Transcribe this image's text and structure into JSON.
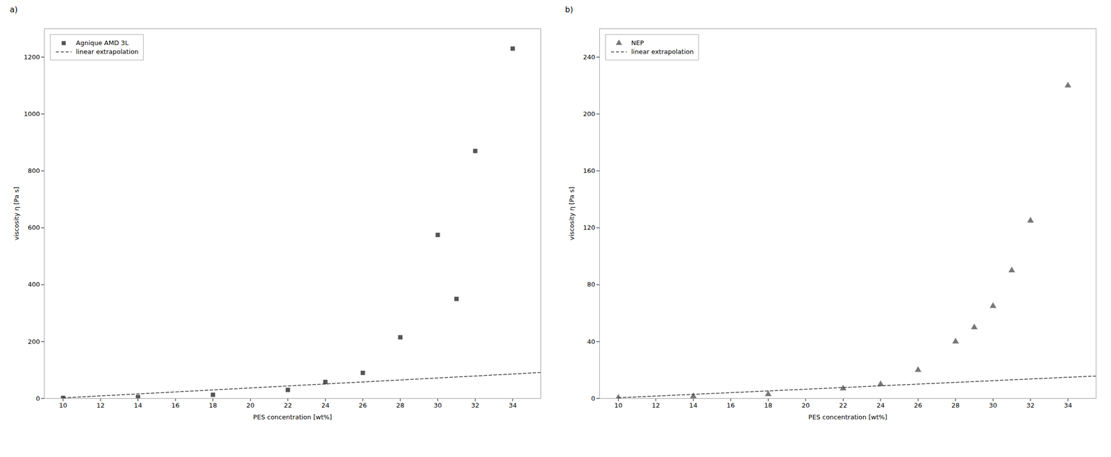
{
  "chart_data": [
    {
      "type": "scatter",
      "title": "a)",
      "x_label": "PES concentration [wt%]",
      "y_label": "viscosity η [Pa s]",
      "series": [
        {
          "name": "Agnique AMD 3L",
          "type": "scatter",
          "marker": "square",
          "color": "#555555",
          "x": [
            10,
            14,
            18,
            22,
            24,
            26,
            28,
            30,
            31,
            32,
            34
          ],
          "values": [
            2,
            5,
            13,
            30,
            58,
            90,
            215,
            575,
            350,
            870,
            1230
          ]
        },
        {
          "name": "linear extrapolation",
          "type": "line",
          "line_style": "dashed",
          "color": "#333333",
          "x": [
            10,
            35.5
          ],
          "values": [
            2,
            91.25
          ]
        }
      ],
      "xlim": [
        9.0,
        35.5
      ],
      "ylim": [
        0,
        1300
      ],
      "xticks": [
        10,
        12,
        14,
        16,
        18,
        20,
        22,
        24,
        26,
        28,
        30,
        32,
        34
      ],
      "yticks": [
        0,
        200,
        400,
        600,
        800,
        1000,
        1200
      ],
      "grid": false,
      "legend": "upper left"
    },
    {
      "type": "scatter",
      "title": "b)",
      "x_label": "PES concentration [wt%]",
      "y_label": "viscosity η [Pa s]",
      "series": [
        {
          "name": "NEP",
          "type": "scatter",
          "marker": "triangle",
          "color": "#777777",
          "x": [
            10,
            14,
            18,
            22,
            24,
            26,
            28,
            29,
            30,
            31,
            32,
            34
          ],
          "values": [
            0.5,
            1.5,
            3,
            7,
            10,
            20,
            40,
            50,
            65,
            90,
            125,
            220
          ]
        },
        {
          "name": "linear extrapolation",
          "type": "line",
          "line_style": "dashed",
          "color": "#333333",
          "x": [
            10,
            35.5
          ],
          "values": [
            0.5,
            15.8
          ]
        }
      ],
      "xlim": [
        9.0,
        35.5
      ],
      "ylim": [
        0,
        260
      ],
      "xticks": [
        10,
        12,
        14,
        16,
        18,
        20,
        22,
        24,
        26,
        28,
        30,
        32,
        34
      ],
      "yticks": [
        0,
        40,
        80,
        120,
        160,
        200,
        240
      ],
      "grid": false,
      "legend": "upper left"
    }
  ]
}
